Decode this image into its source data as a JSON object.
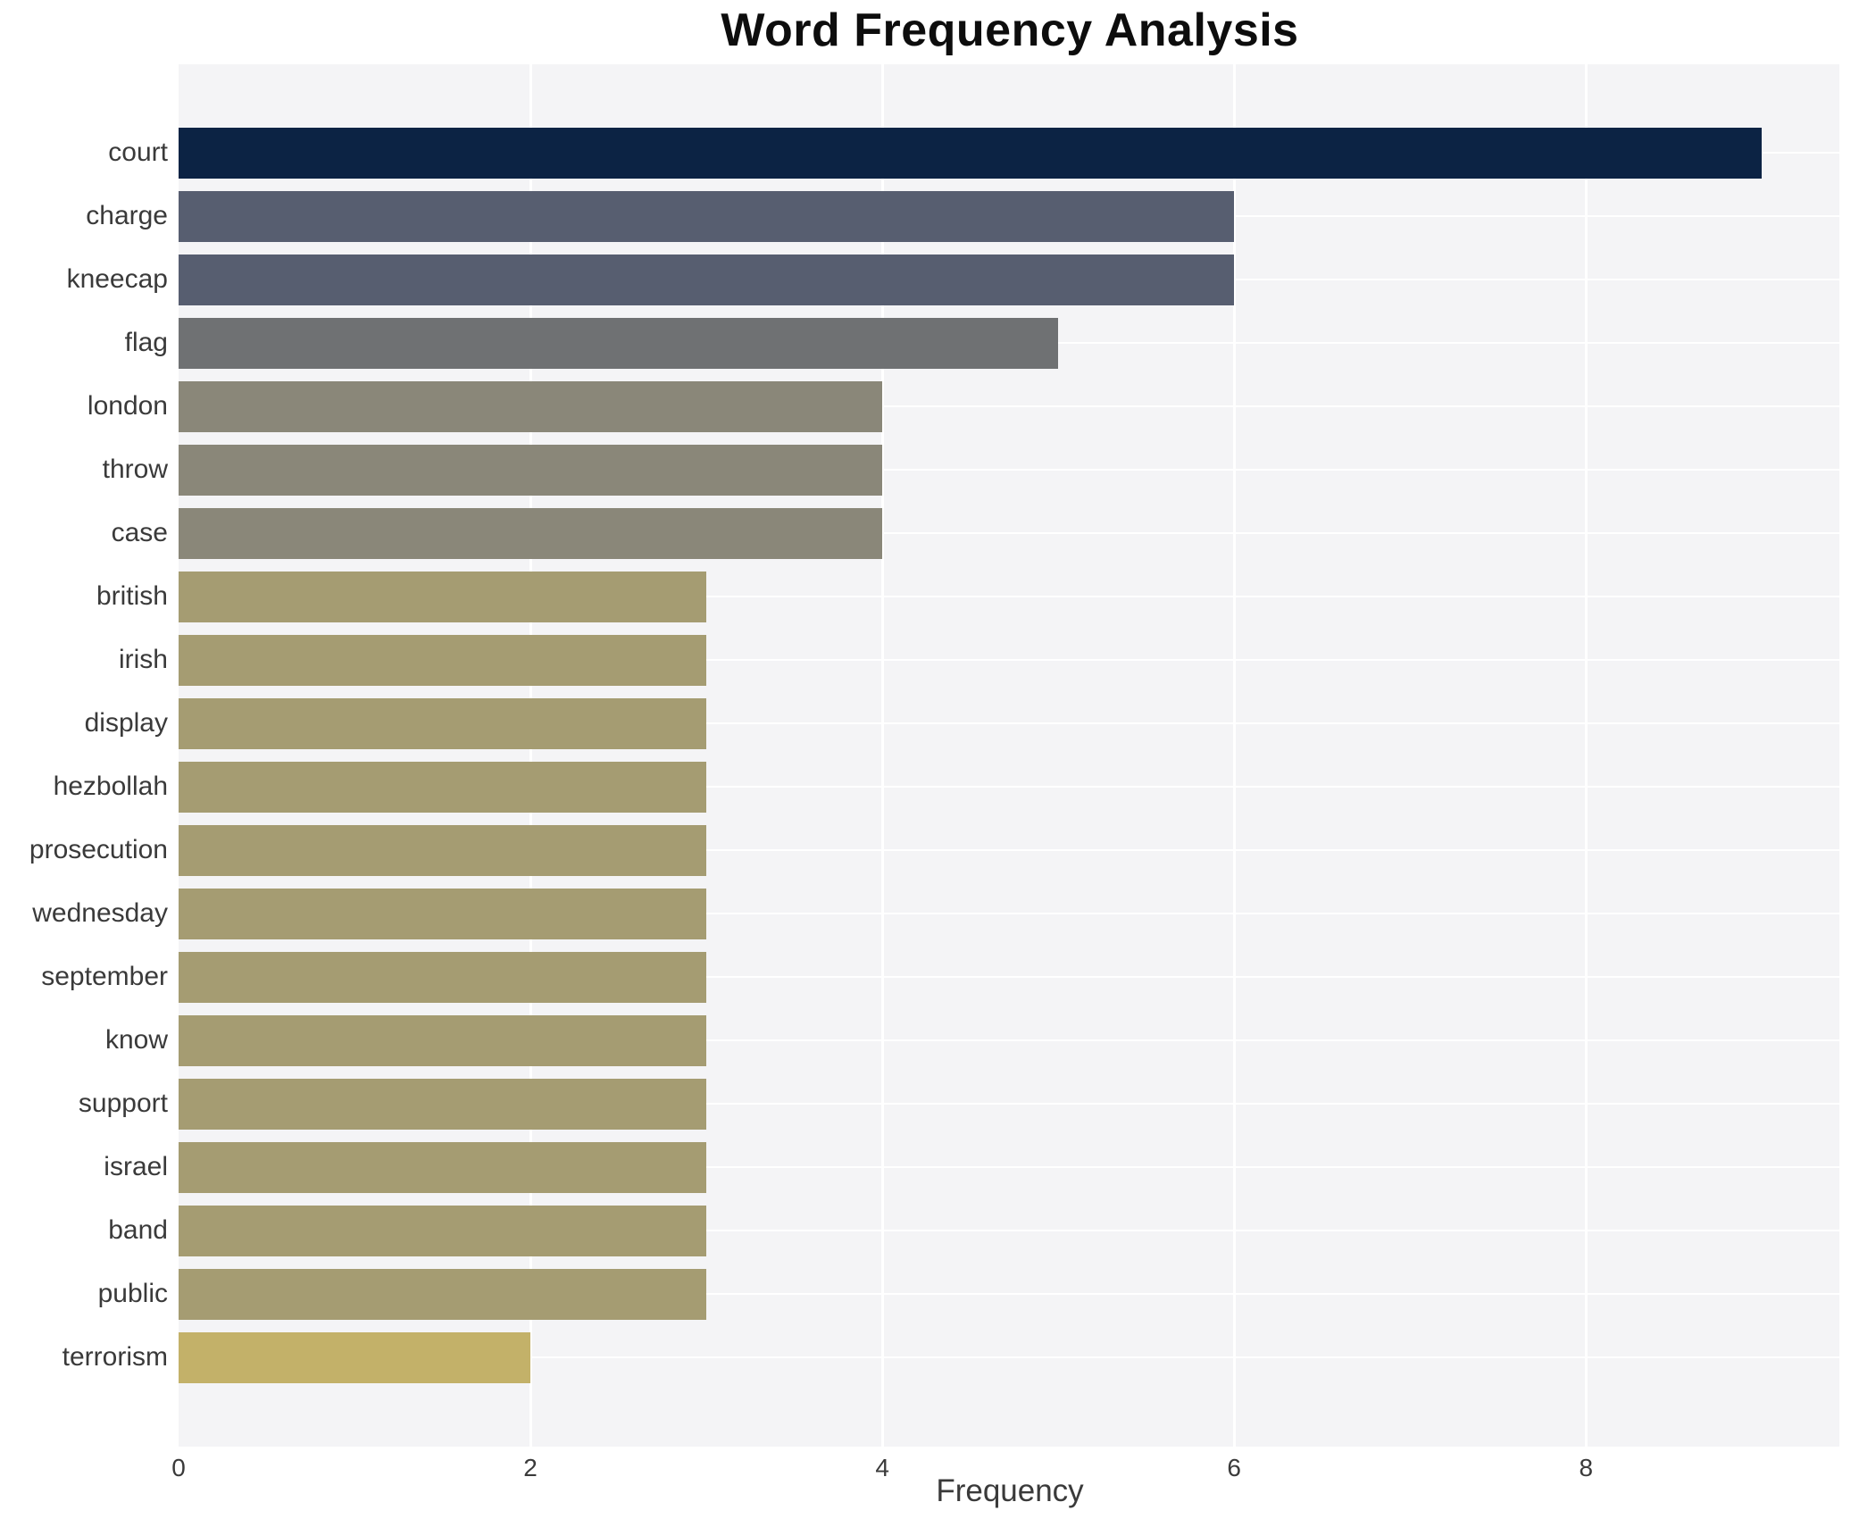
{
  "chart_data": {
    "type": "bar",
    "orientation": "horizontal",
    "title": "Word Frequency Analysis",
    "xlabel": "Frequency",
    "ylabel": "",
    "categories": [
      "court",
      "charge",
      "kneecap",
      "flag",
      "london",
      "throw",
      "case",
      "british",
      "irish",
      "display",
      "hezbollah",
      "prosecution",
      "wednesday",
      "september",
      "know",
      "support",
      "israel",
      "band",
      "public",
      "terrorism"
    ],
    "values": [
      9,
      6,
      6,
      5,
      4,
      4,
      4,
      3,
      3,
      3,
      3,
      3,
      3,
      3,
      3,
      3,
      3,
      3,
      3,
      2
    ],
    "bar_colors": [
      "#0c2344",
      "#575e70",
      "#575e70",
      "#6f7173",
      "#8a8779",
      "#8a8779",
      "#8a8779",
      "#a59c72",
      "#a59c72",
      "#a59c72",
      "#a59c72",
      "#a59c72",
      "#a59c72",
      "#a59c72",
      "#a59c72",
      "#a59c72",
      "#a59c72",
      "#a59c72",
      "#a59c72",
      "#c3b169"
    ],
    "xlim": [
      0,
      9.45
    ],
    "xticks": [
      0,
      2,
      4,
      6,
      8
    ],
    "legend": "none",
    "grid": "white gridlines on light gray plot background",
    "plot_bg": "#f4f4f6",
    "gridline_color": "#ffffff",
    "label_color": "#3a3a3a",
    "title_color": "#0d0d0d"
  }
}
